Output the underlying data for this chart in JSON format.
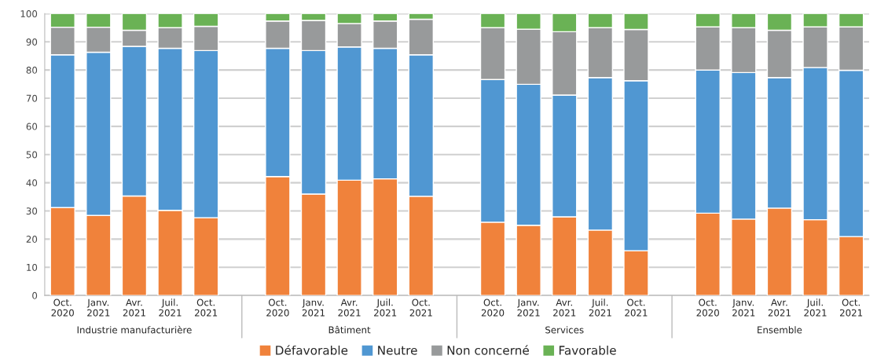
{
  "chart_data": {
    "type": "bar",
    "stacked": true,
    "categories": [
      "Oct.\n2020",
      "Janv.\n2021",
      "Avr.\n2021",
      "Juil.\n2021",
      "Oct.\n2021",
      null,
      "Oct.\n2020",
      "Janv.\n2021",
      "Avr.\n2021",
      "Juil.\n2021",
      "Oct.\n2021",
      null,
      "Oct.\n2020",
      "Janv.\n2021",
      "Avr.\n2021",
      "Juil.\n2021",
      "Oct.\n2021",
      null,
      "Oct.\n2020",
      "Janv.\n2021",
      "Avr.\n2021",
      "Juil.\n2021",
      "Oct.\n2021"
    ],
    "series": [
      {
        "name": "Défavorable",
        "color": "#f0823b",
        "values": [
          31.2,
          28.4,
          35.3,
          30.2,
          27.6,
          null,
          42.2,
          36.0,
          40.9,
          41.4,
          35.2,
          null,
          26.0,
          24.9,
          27.9,
          23.2,
          15.9,
          null,
          29.2,
          27.1,
          31.0,
          26.9,
          20.9
        ]
      },
      {
        "name": "Neutre",
        "color": "#5097d2",
        "values": [
          54.2,
          57.9,
          53.1,
          57.5,
          59.3,
          null,
          45.5,
          50.9,
          47.3,
          46.3,
          50.2,
          null,
          50.6,
          50.0,
          43.2,
          54.1,
          60.3,
          null,
          50.8,
          52.0,
          46.3,
          54.0,
          59.0
        ]
      },
      {
        "name": "Non concerné",
        "color": "#989a9b",
        "values": [
          9.8,
          8.9,
          5.7,
          7.3,
          8.6,
          null,
          9.7,
          10.7,
          8.3,
          9.7,
          12.6,
          null,
          18.4,
          19.6,
          22.5,
          17.7,
          18.2,
          null,
          15.3,
          15.9,
          16.8,
          14.4,
          15.4
        ]
      },
      {
        "name": "Favorable",
        "color": "#6ab255",
        "values": [
          4.8,
          4.8,
          5.9,
          5.0,
          4.5,
          null,
          2.6,
          2.4,
          3.5,
          2.6,
          2.0,
          null,
          5.0,
          5.5,
          6.4,
          5.0,
          5.6,
          null,
          4.7,
          5.0,
          5.9,
          4.7,
          4.7
        ]
      }
    ],
    "annotations": [
      "Industrie manufacturière",
      "Bâtiment",
      "Services",
      "Ensemble"
    ],
    "ylim": [
      0,
      100
    ],
    "yticks": [
      0,
      10,
      20,
      30,
      40,
      50,
      60,
      70,
      80,
      90,
      100
    ],
    "grid": "y",
    "legend": "bottom"
  }
}
